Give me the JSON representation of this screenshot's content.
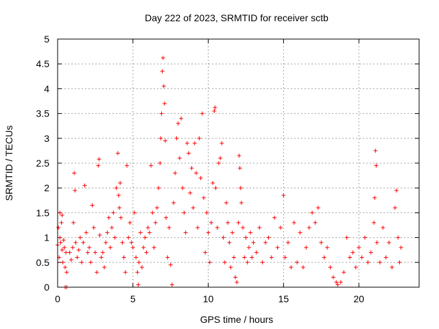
{
  "chart_data": {
    "type": "scatter",
    "title": "Day 222 of 2023, SRMTID for receiver sctb",
    "xlabel": "GPS time / hours",
    "ylabel": "SRMTID / TECUs",
    "xlim": [
      0,
      24
    ],
    "ylim": [
      0,
      5
    ],
    "xticks": [
      0,
      5,
      10,
      15,
      20
    ],
    "xtick_labels": [
      "0",
      "5",
      "10",
      "15",
      "20"
    ],
    "yticks": [
      0,
      0.5,
      1,
      1.5,
      2,
      2.5,
      3,
      3.5,
      4,
      4.5,
      5
    ],
    "ytick_labels": [
      "0",
      "0.5",
      "1",
      "1.5",
      "2",
      "2.5",
      "3",
      "3.5",
      "4",
      "4.5",
      "5"
    ],
    "grid": true,
    "marker": "plus",
    "color": "#ff0000",
    "series": [
      {
        "name": "sctb",
        "points": [
          [
            0.0,
            0.85
          ],
          [
            0.05,
            1.2
          ],
          [
            0.1,
            0.6
          ],
          [
            0.15,
            1.0
          ],
          [
            0.2,
            0.9
          ],
          [
            0.25,
            1.3
          ],
          [
            0.3,
            0.75
          ],
          [
            0.35,
            0.5
          ],
          [
            0.4,
            0.95
          ],
          [
            0.45,
            0.8
          ],
          [
            0.5,
            0.4
          ],
          [
            0.55,
            0.7
          ],
          [
            0.6,
            0.3
          ],
          [
            0.15,
            1.5
          ],
          [
            0.3,
            1.45
          ],
          [
            0.5,
            0.0
          ],
          [
            0.6,
            0.0
          ],
          [
            0.8,
            0.7
          ],
          [
            0.9,
            0.55
          ],
          [
            1.0,
            0.8
          ],
          [
            1.05,
            1.3
          ],
          [
            1.1,
            2.3
          ],
          [
            1.15,
            1.95
          ],
          [
            1.2,
            0.9
          ],
          [
            1.3,
            0.6
          ],
          [
            1.4,
            0.75
          ],
          [
            1.5,
            1.0
          ],
          [
            1.6,
            0.5
          ],
          [
            1.7,
            0.9
          ],
          [
            1.8,
            2.05
          ],
          [
            1.9,
            1.1
          ],
          [
            2.0,
            0.7
          ],
          [
            2.1,
            0.8
          ],
          [
            2.2,
            0.5
          ],
          [
            2.3,
            1.65
          ],
          [
            2.4,
            1.2
          ],
          [
            2.5,
            0.7
          ],
          [
            2.6,
            0.3
          ],
          [
            2.7,
            2.45
          ],
          [
            2.75,
            2.58
          ],
          [
            2.8,
            1.05
          ],
          [
            2.9,
            0.6
          ],
          [
            3.0,
            0.7
          ],
          [
            3.1,
            0.4
          ],
          [
            3.2,
            0.9
          ],
          [
            3.3,
            1.1
          ],
          [
            3.4,
            1.4
          ],
          [
            3.5,
            0.8
          ],
          [
            3.6,
            1.2
          ],
          [
            3.7,
            1.5
          ],
          [
            3.8,
            1.0
          ],
          [
            3.9,
            2.0
          ],
          [
            4.0,
            2.7
          ],
          [
            4.05,
            1.85
          ],
          [
            4.1,
            1.6
          ],
          [
            4.15,
            2.1
          ],
          [
            4.2,
            1.4
          ],
          [
            4.3,
            0.9
          ],
          [
            4.4,
            0.6
          ],
          [
            4.5,
            0.3
          ],
          [
            4.6,
            2.45
          ],
          [
            4.7,
            1.0
          ],
          [
            4.8,
            1.3
          ],
          [
            4.9,
            0.9
          ],
          [
            5.0,
            0.8
          ],
          [
            5.1,
            1.5
          ],
          [
            5.2,
            0.6
          ],
          [
            5.3,
            0.3
          ],
          [
            5.35,
            0.05
          ],
          [
            5.4,
            0.5
          ],
          [
            5.5,
            1.1
          ],
          [
            5.6,
            0.4
          ],
          [
            5.7,
            0.8
          ],
          [
            5.8,
            1.0
          ],
          [
            5.9,
            0.7
          ],
          [
            6.0,
            1.2
          ],
          [
            6.1,
            1.1
          ],
          [
            6.2,
            2.45
          ],
          [
            6.3,
            1.5
          ],
          [
            6.4,
            0.8
          ],
          [
            6.5,
            1.3
          ],
          [
            6.6,
            1.6
          ],
          [
            6.7,
            2.0
          ],
          [
            6.8,
            2.5
          ],
          [
            6.85,
            3.0
          ],
          [
            6.9,
            3.5
          ],
          [
            6.95,
            4.35
          ],
          [
            7.0,
            4.62
          ],
          [
            7.05,
            4.05
          ],
          [
            7.1,
            3.7
          ],
          [
            7.15,
            2.95
          ],
          [
            7.2,
            1.4
          ],
          [
            7.3,
            0.6
          ],
          [
            7.4,
            1.2
          ],
          [
            7.5,
            0.45
          ],
          [
            7.6,
            0.05
          ],
          [
            7.7,
            1.7
          ],
          [
            7.8,
            2.3
          ],
          [
            7.9,
            3.0
          ],
          [
            8.0,
            3.3
          ],
          [
            8.1,
            2.6
          ],
          [
            8.2,
            3.4
          ],
          [
            8.3,
            2.0
          ],
          [
            8.4,
            1.5
          ],
          [
            8.5,
            1.1
          ],
          [
            8.6,
            2.9
          ],
          [
            8.7,
            2.7
          ],
          [
            8.8,
            1.9
          ],
          [
            8.9,
            2.4
          ],
          [
            9.0,
            1.6
          ],
          [
            9.1,
            2.9
          ],
          [
            9.2,
            2.3
          ],
          [
            9.3,
            1.2
          ],
          [
            9.4,
            3.0
          ],
          [
            9.5,
            2.2
          ],
          [
            9.6,
            3.5
          ],
          [
            9.7,
            1.8
          ],
          [
            9.8,
            0.7
          ],
          [
            9.9,
            1.5
          ],
          [
            10.0,
            1.1
          ],
          [
            10.1,
            0.5
          ],
          [
            10.2,
            1.3
          ],
          [
            10.3,
            2.1
          ],
          [
            10.4,
            3.55
          ],
          [
            10.45,
            3.62
          ],
          [
            10.5,
            2.0
          ],
          [
            10.6,
            1.2
          ],
          [
            10.7,
            2.5
          ],
          [
            10.8,
            2.6
          ],
          [
            10.9,
            2.9
          ],
          [
            11.0,
            1.0
          ],
          [
            11.1,
            0.5
          ],
          [
            11.2,
            1.7
          ],
          [
            11.3,
            1.3
          ],
          [
            11.4,
            0.9
          ],
          [
            11.5,
            0.4
          ],
          [
            11.6,
            1.1
          ],
          [
            11.7,
            0.6
          ],
          [
            11.8,
            0.2
          ],
          [
            11.9,
            0.1
          ],
          [
            12.0,
            1.3
          ],
          [
            12.05,
            2.65
          ],
          [
            12.1,
            2.4
          ],
          [
            12.15,
            2.0
          ],
          [
            12.2,
            1.7
          ],
          [
            12.3,
            1.2
          ],
          [
            12.4,
            0.6
          ],
          [
            12.5,
            1.0
          ],
          [
            12.6,
            0.5
          ],
          [
            12.7,
            0.8
          ],
          [
            12.8,
            1.1
          ],
          [
            12.9,
            0.6
          ],
          [
            13.0,
            0.9
          ],
          [
            13.2,
            0.7
          ],
          [
            13.4,
            1.2
          ],
          [
            13.6,
            0.5
          ],
          [
            13.8,
            0.9
          ],
          [
            14.0,
            1.0
          ],
          [
            14.2,
            0.6
          ],
          [
            14.4,
            1.4
          ],
          [
            14.6,
            0.8
          ],
          [
            14.8,
            1.2
          ],
          [
            15.0,
            1.85
          ],
          [
            15.1,
            0.6
          ],
          [
            15.3,
            0.9
          ],
          [
            15.5,
            0.4
          ],
          [
            15.7,
            1.3
          ],
          [
            15.9,
            0.5
          ],
          [
            16.1,
            1.1
          ],
          [
            16.3,
            0.4
          ],
          [
            16.5,
            0.8
          ],
          [
            16.7,
            1.2
          ],
          [
            16.9,
            1.5
          ],
          [
            17.1,
            1.3
          ],
          [
            17.3,
            1.6
          ],
          [
            17.5,
            0.9
          ],
          [
            17.7,
            0.6
          ],
          [
            17.9,
            0.8
          ],
          [
            18.1,
            0.4
          ],
          [
            18.3,
            0.2
          ],
          [
            18.5,
            0.1
          ],
          [
            18.6,
            0.05
          ],
          [
            18.8,
            0.1
          ],
          [
            19.0,
            0.3
          ],
          [
            19.2,
            1.0
          ],
          [
            19.4,
            0.6
          ],
          [
            19.6,
            0.7
          ],
          [
            19.8,
            0.4
          ],
          [
            20.0,
            0.8
          ],
          [
            20.2,
            0.6
          ],
          [
            20.4,
            1.0
          ],
          [
            20.6,
            0.5
          ],
          [
            20.8,
            0.7
          ],
          [
            21.0,
            1.3
          ],
          [
            21.05,
            1.8
          ],
          [
            21.1,
            2.75
          ],
          [
            21.15,
            2.45
          ],
          [
            21.2,
            0.9
          ],
          [
            21.4,
            0.5
          ],
          [
            21.6,
            1.2
          ],
          [
            21.8,
            0.6
          ],
          [
            22.0,
            0.9
          ],
          [
            22.2,
            0.4
          ],
          [
            22.4,
            1.6
          ],
          [
            22.5,
            1.95
          ],
          [
            22.6,
            1.0
          ],
          [
            22.7,
            0.5
          ],
          [
            22.8,
            0.8
          ]
        ]
      }
    ]
  }
}
